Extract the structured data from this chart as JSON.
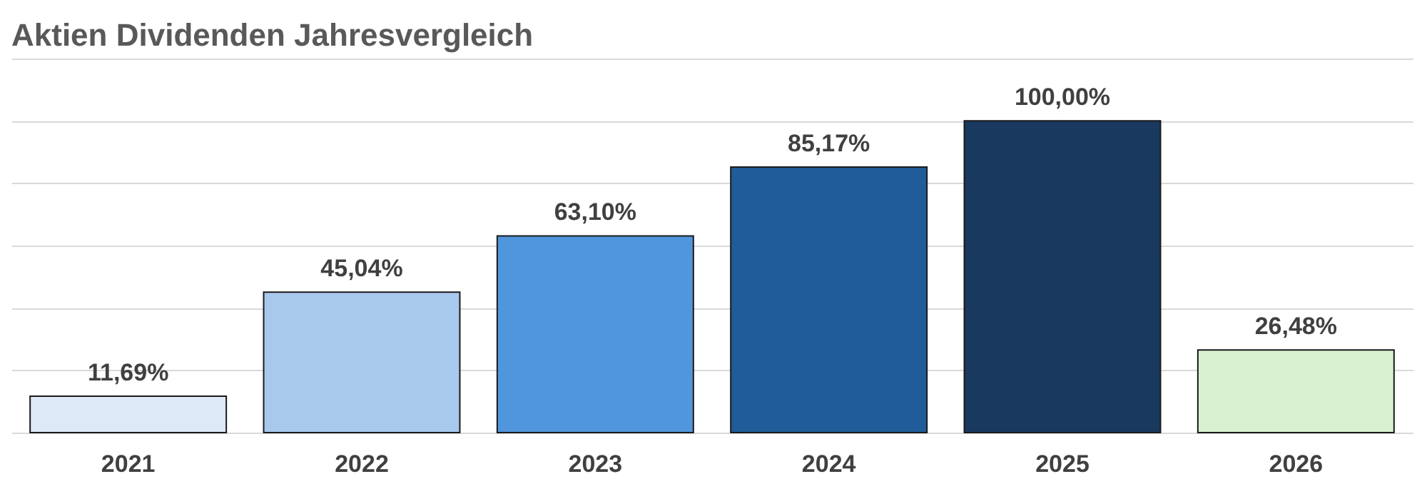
{
  "chart_data": {
    "type": "bar",
    "title": "Aktien Dividenden Jahresvergleich",
    "categories": [
      "2021",
      "2022",
      "2023",
      "2024",
      "2025",
      "2026"
    ],
    "values": [
      11.69,
      45.04,
      63.1,
      85.17,
      100.0,
      26.48
    ],
    "colors": [
      "#dde9f7",
      "#a8c8ec",
      "#4f96dc",
      "#1f5c99",
      "#193a5e",
      "#d9f1d1"
    ],
    "value_labels": [
      "11,69%",
      "45,04%",
      "63,10%",
      "85,17%",
      "100,00%",
      "26,48%"
    ],
    "ylim": [
      0,
      120
    ],
    "yticks": [
      {
        "value": 0,
        "label": null
      },
      {
        "value": 20,
        "label": null
      },
      {
        "value": 40,
        "label": null
      },
      {
        "value": 60,
        "label": null
      },
      {
        "value": 80,
        "label": null
      },
      {
        "value": 100,
        "label": null
      },
      {
        "value": 120,
        "label": null
      }
    ],
    "grid": "y",
    "tick_labels": "x"
  }
}
